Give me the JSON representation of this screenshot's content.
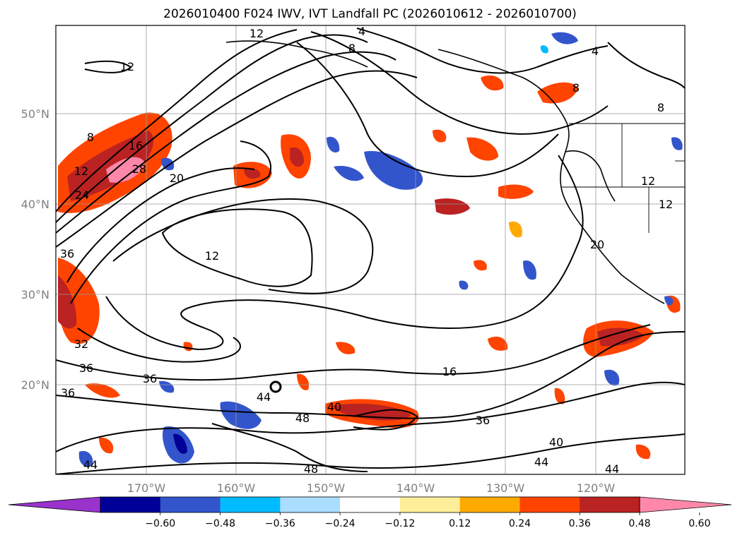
{
  "title": "2026010400 F024 IWV, IVT Landfall PC (2026010612 - 2026010700)",
  "lat_labels": [
    "50°N",
    "40°N",
    "30°N",
    "20°N"
  ],
  "lon_labels": [
    "170°W",
    "160°W",
    "150°W",
    "140°W",
    "130°W",
    "120°W"
  ],
  "contour_labels": [
    "12",
    "4",
    "8",
    "4",
    "12",
    "8",
    "16",
    "12",
    "28",
    "24",
    "20",
    "8",
    "12",
    "12",
    "20",
    "36",
    "12",
    "32",
    "36",
    "36",
    "36",
    "44",
    "40",
    "48",
    "16",
    "36",
    "40",
    "44",
    "44",
    "44",
    "48",
    "8"
  ],
  "colorbar": {
    "colors": [
      "#9933cc",
      "#000099",
      "#3355cc",
      "#00bbff",
      "#aaddff",
      "#ffffff",
      "#ffee99",
      "#ffaa00",
      "#ff4400",
      "#bb2222",
      "#ff88aa"
    ],
    "labels": [
      "−0.60",
      "−0.48",
      "−0.36",
      "−0.24",
      "−0.12",
      "0.12",
      "0.24",
      "0.36",
      "0.48",
      "0.60"
    ]
  }
}
